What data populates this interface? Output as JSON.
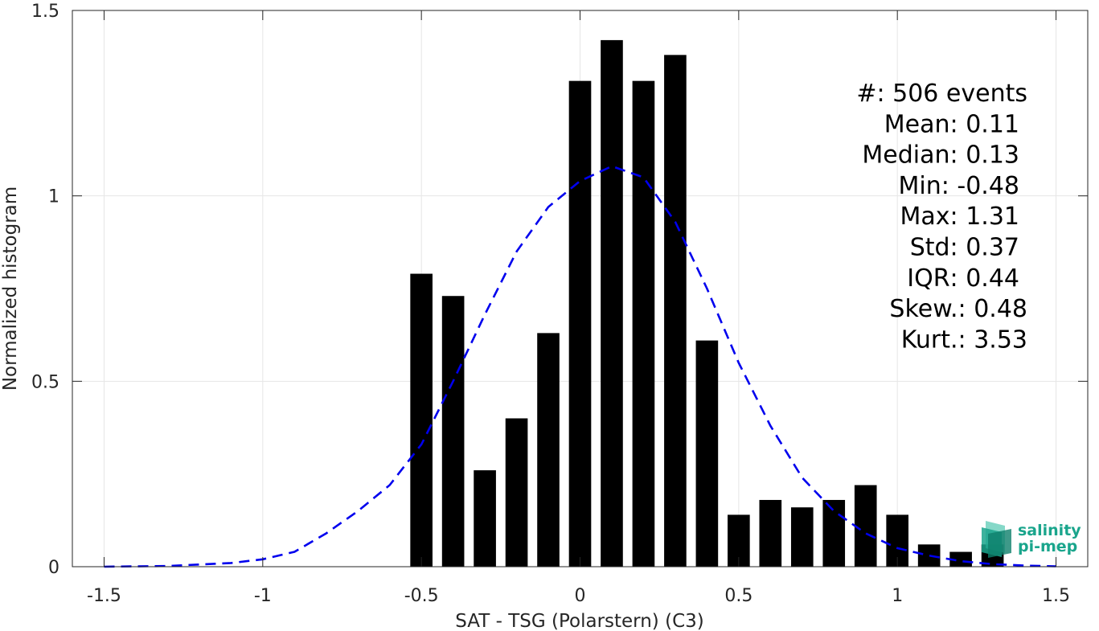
{
  "chart_data": {
    "type": "bar",
    "xlabel": "SAT - TSG (Polarstern) (C3)",
    "ylabel": "Normalized histogram",
    "xlim": [
      -1.6,
      1.6
    ],
    "ylim": [
      0,
      1.5
    ],
    "xticks": [
      -1.5,
      -1,
      -0.5,
      0,
      0.5,
      1,
      1.5
    ],
    "xtick_labels": [
      "-1.5",
      "-1",
      "-0.5",
      "0",
      "0.5",
      "1",
      "1.5"
    ],
    "yticks": [
      0,
      0.5,
      1,
      1.5
    ],
    "ytick_labels": [
      "0",
      "0.5",
      "1",
      "1.5"
    ],
    "grid": true,
    "bin_width": 0.1,
    "bar_color": "#000000",
    "bars": {
      "x": [
        -0.5,
        -0.4,
        -0.3,
        -0.2,
        -0.1,
        0.0,
        0.1,
        0.2,
        0.3,
        0.4,
        0.5,
        0.6,
        0.7,
        0.8,
        0.9,
        1.0,
        1.1,
        1.2,
        1.3
      ],
      "values": [
        0.79,
        0.73,
        0.26,
        0.4,
        0.63,
        1.31,
        1.42,
        1.31,
        1.38,
        0.61,
        0.14,
        0.18,
        0.16,
        0.18,
        0.22,
        0.14,
        0.06,
        0.04,
        0.06
      ]
    },
    "fit_curve": {
      "style": "dashed",
      "color": "#0000ee",
      "x": [
        -1.5,
        -1.3,
        -1.1,
        -1.0,
        -0.9,
        -0.8,
        -0.7,
        -0.6,
        -0.5,
        -0.4,
        -0.3,
        -0.2,
        -0.1,
        0.0,
        0.1,
        0.2,
        0.3,
        0.4,
        0.5,
        0.6,
        0.7,
        0.8,
        0.9,
        1.0,
        1.1,
        1.2,
        1.3,
        1.4,
        1.5
      ],
      "y": [
        0.0,
        0.002,
        0.01,
        0.02,
        0.04,
        0.09,
        0.15,
        0.22,
        0.33,
        0.5,
        0.68,
        0.85,
        0.97,
        1.04,
        1.08,
        1.05,
        0.93,
        0.75,
        0.55,
        0.38,
        0.24,
        0.15,
        0.09,
        0.05,
        0.03,
        0.015,
        0.007,
        0.003,
        0.001
      ]
    },
    "annotations": [
      {
        "label": "#  ",
        "value": ": 506 events"
      },
      {
        "label": "Mean ",
        "value": ": 0.11"
      },
      {
        "label": "Median ",
        "value": ": 0.13"
      },
      {
        "label": "Min ",
        "value": ": -0.48"
      },
      {
        "label": "Max ",
        "value": ": 1.31"
      },
      {
        "label": "Std ",
        "value": ": 0.37"
      },
      {
        "label": "IQR ",
        "value": ": 0.44"
      },
      {
        "label": "Skew. ",
        "value": ": 0.48"
      },
      {
        "label": "Kurt. ",
        "value": ": 3.53"
      }
    ]
  },
  "logo": {
    "line1": "salinity",
    "line2": "pi-mep",
    "color": "#1aa58c"
  }
}
